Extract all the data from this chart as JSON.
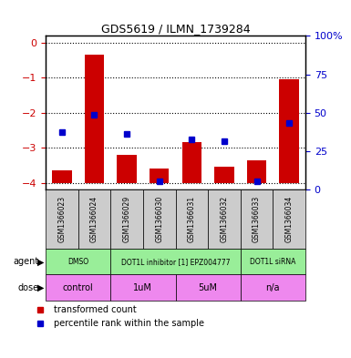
{
  "title": "GDS5619 / ILMN_1739284",
  "samples": [
    "GSM1366023",
    "GSM1366024",
    "GSM1366029",
    "GSM1366030",
    "GSM1366031",
    "GSM1366032",
    "GSM1366033",
    "GSM1366034"
  ],
  "bar_values": [
    -3.65,
    -0.35,
    -3.2,
    -3.6,
    -2.85,
    -3.55,
    -3.35,
    -1.05
  ],
  "dot_values_left": [
    -2.55,
    -2.05,
    -2.6,
    -3.95,
    -2.75,
    -2.8,
    -3.95,
    -2.3
  ],
  "ylim_left": [
    -4.2,
    0.2
  ],
  "ylim_right": [
    0,
    100
  ],
  "yticks_left": [
    0,
    -1,
    -2,
    -3,
    -4
  ],
  "yticks_right": [
    0,
    25,
    50,
    75,
    100
  ],
  "bar_color": "#cc0000",
  "dot_color": "#0000cc",
  "bar_bottom": -4.0,
  "legend_items": [
    {
      "label": "transformed count",
      "color": "#cc0000"
    },
    {
      "label": "percentile rank within the sample",
      "color": "#0000cc"
    }
  ],
  "left_axis_color": "#cc0000",
  "right_axis_color": "#0000cc",
  "background_gray": "#cccccc",
  "agent_green": "#99ee99",
  "dose_pink": "#ee88ee",
  "agent_groups": [
    {
      "label": "DMSO",
      "start": 0,
      "end": 2
    },
    {
      "label": "DOT1L inhibitor [1] EPZ004777",
      "start": 2,
      "end": 6
    },
    {
      "label": "DOT1L siRNA",
      "start": 6,
      "end": 8
    }
  ],
  "dose_groups": [
    {
      "label": "control",
      "start": 0,
      "end": 2
    },
    {
      "label": "1uM",
      "start": 2,
      "end": 4
    },
    {
      "label": "5uM",
      "start": 4,
      "end": 6
    },
    {
      "label": "n/a",
      "start": 6,
      "end": 8
    }
  ]
}
